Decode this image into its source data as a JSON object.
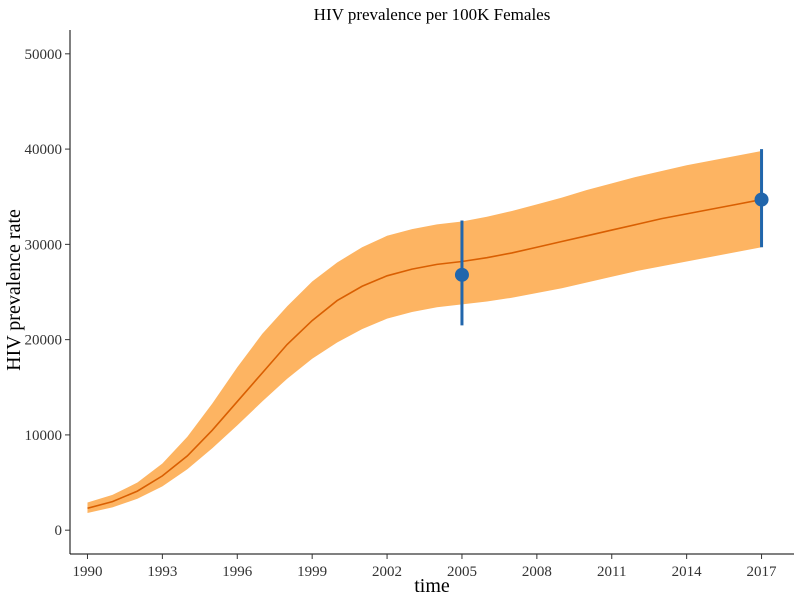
{
  "chart_data": {
    "type": "line",
    "title": "HIV prevalence per 100K Females",
    "xlabel": "time",
    "ylabel": "HIV prevalence rate",
    "xlim": [
      1989.3,
      2018.3
    ],
    "ylim": [
      -2500,
      52500
    ],
    "x_ticks": [
      1990,
      1993,
      1996,
      1999,
      2002,
      2005,
      2008,
      2011,
      2014,
      2017
    ],
    "y_ticks": [
      0,
      10000,
      20000,
      30000,
      40000,
      50000
    ],
    "grid": false,
    "legend": "none",
    "colors": {
      "band": "#fdb462",
      "line": "#d95f02",
      "observed": "#2166ac",
      "axis": "#000000",
      "text": "#333333"
    },
    "series": [
      {
        "kind": "line",
        "x": [
          1990,
          1991,
          1992,
          1993,
          1994,
          1995,
          1996,
          1997,
          1998,
          1999,
          2000,
          2001,
          2002,
          2003,
          2004,
          2005,
          2006,
          2007,
          2008,
          2009,
          2010,
          2011,
          2012,
          2013,
          2014,
          2015,
          2016,
          2017
        ],
        "y": [
          2300,
          3000,
          4100,
          5700,
          7800,
          10500,
          13500,
          16500,
          19500,
          22000,
          24100,
          25600,
          26700,
          27400,
          27900,
          28200,
          28600,
          29100,
          29700,
          30300,
          30900,
          31500,
          32100,
          32700,
          33200,
          33700,
          34200,
          34700
        ]
      },
      {
        "kind": "band",
        "x": [
          1990,
          1991,
          1992,
          1993,
          1994,
          1995,
          1996,
          1997,
          1998,
          1999,
          2000,
          2001,
          2002,
          2003,
          2004,
          2005,
          2006,
          2007,
          2008,
          2009,
          2010,
          2011,
          2012,
          2013,
          2014,
          2015,
          2016,
          2017
        ],
        "lower": [
          1800,
          2400,
          3300,
          4600,
          6400,
          8600,
          11000,
          13500,
          15900,
          18000,
          19700,
          21100,
          22200,
          22900,
          23400,
          23700,
          24000,
          24400,
          24900,
          25400,
          26000,
          26600,
          27200,
          27700,
          28200,
          28700,
          29200,
          29700
        ],
        "upper": [
          2900,
          3700,
          5000,
          7000,
          9800,
          13300,
          17100,
          20600,
          23500,
          26100,
          28100,
          29700,
          30900,
          31600,
          32100,
          32400,
          32900,
          33500,
          34200,
          34900,
          35700,
          36400,
          37100,
          37700,
          38300,
          38800,
          39300,
          39800
        ]
      },
      {
        "kind": "points",
        "x": [
          2005,
          2017
        ],
        "y": [
          26800,
          34700
        ],
        "lower": [
          21500,
          29700
        ],
        "upper": [
          32500,
          40000
        ]
      }
    ]
  }
}
